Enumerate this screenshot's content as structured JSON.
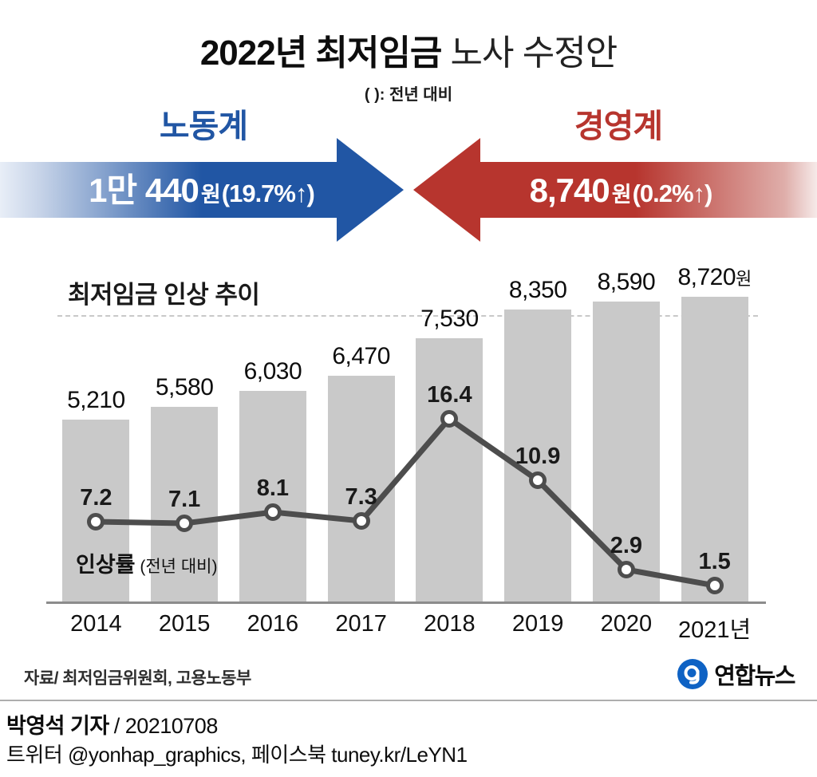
{
  "colors": {
    "labor_blue": "#2156a4",
    "labor_blue_mid": "#c6d3e8",
    "labor_blue_fade": "#e8eef7",
    "mgmt_red": "#b7352e",
    "mgmt_red_mid": "#dfaeaa",
    "mgmt_red_fade": "#f6eae9",
    "bar_gray": "#c9c9c9",
    "line_gray": "#4d4d4d",
    "logo_blue": "#0e62c4"
  },
  "header": {
    "title_strong": "2022년 최저임금",
    "title_light": " 노사 수정안",
    "note": "( ): 전년 대비"
  },
  "proposals": {
    "labor": {
      "group": "노동계",
      "value": "1만 440",
      "unit": "원",
      "change": "(19.7%↑)"
    },
    "management": {
      "group": "경영계",
      "value": "8,740",
      "unit": "원",
      "change": "(0.2%↑)"
    }
  },
  "chart_data": {
    "type": "bar",
    "title": "최저임금 인상 추이",
    "categories": [
      "2014",
      "2015",
      "2016",
      "2017",
      "2018",
      "2019",
      "2020",
      "2021년"
    ],
    "unit_suffix": "원",
    "ylim": [
      0,
      8720
    ],
    "grid": "single dashed horizontal line near top",
    "legend_position": "none",
    "series": [
      {
        "name": "최저임금",
        "type": "bar",
        "values": [
          5210,
          5580,
          6030,
          6470,
          7530,
          8350,
          8590,
          8720
        ],
        "labels": [
          "5,210",
          "5,580",
          "6,030",
          "6,470",
          "7,530",
          "8,350",
          "8,590",
          "8,720"
        ]
      },
      {
        "name": "인상률 (전년 대비)",
        "type": "line",
        "values": [
          7.2,
          7.1,
          8.1,
          7.3,
          16.4,
          10.9,
          2.9,
          1.5
        ],
        "labels": [
          "7.2",
          "7.1",
          "8.1",
          "7.3",
          "16.4",
          "10.9",
          "2.9",
          "1.5"
        ]
      }
    ],
    "line_label": {
      "strong": "인상률",
      "light": " (전년 대비)"
    }
  },
  "footer": {
    "source": "자료/ 최저임금위원회, 고용노동부",
    "agency": "연합뉴스",
    "credit_name": "박영석 기자",
    "credit_date": "/ 20210708",
    "contact": "트위터 @yonhap_graphics, 페이스북 tuney.kr/LeYN1"
  }
}
